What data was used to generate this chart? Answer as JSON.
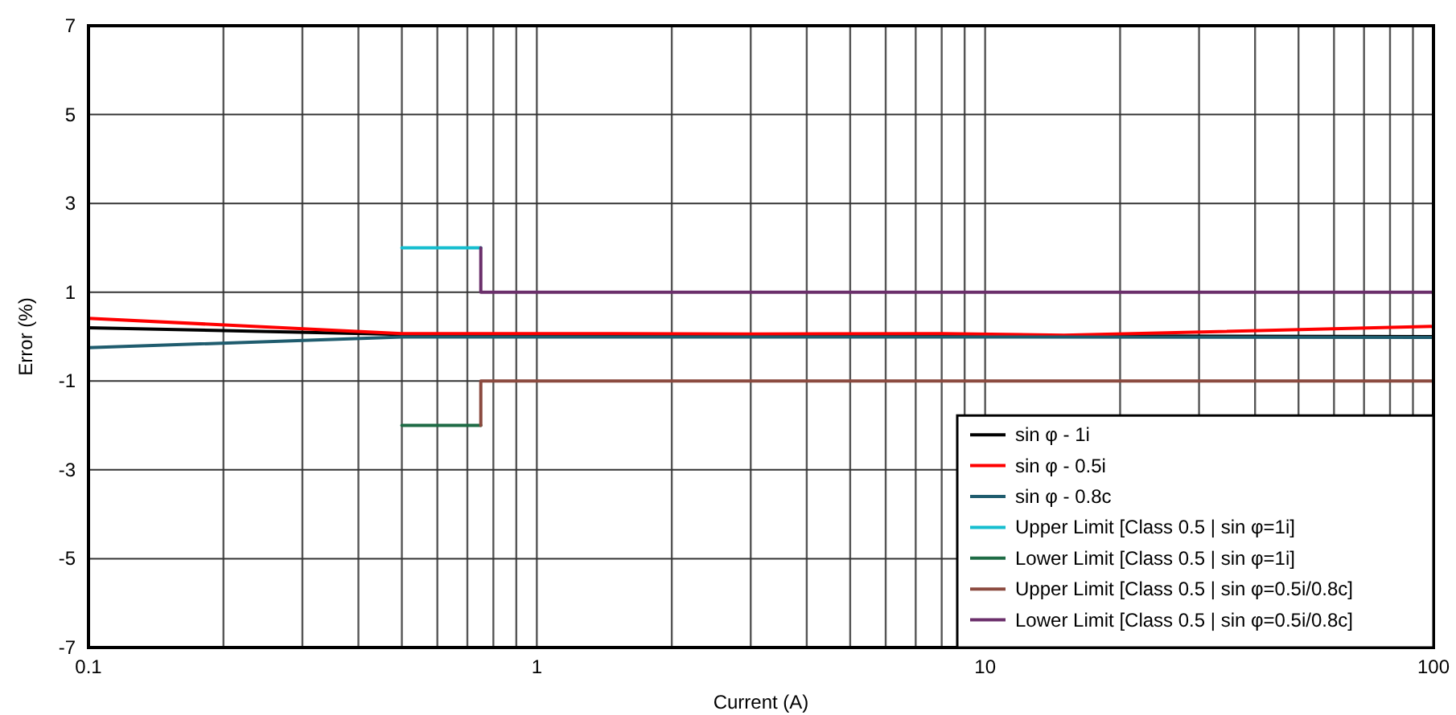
{
  "chart_data": {
    "type": "line",
    "xlabel": "Current (A)",
    "ylabel": "Error (%)",
    "log": "x",
    "xlim": [
      0.1,
      100
    ],
    "xticks": [
      0.1,
      1,
      10,
      100
    ],
    "ylim": [
      -7,
      7
    ],
    "yticks": [
      -7,
      -5,
      -3,
      -1,
      1,
      3,
      5,
      7
    ],
    "grid": true,
    "legend": "bottom right",
    "line_style": "solid",
    "marker": "none",
    "series": [
      {
        "name": "sin φ - 1i",
        "color": "#000000",
        "x": [
          0.1,
          0.5,
          1,
          10,
          100
        ],
        "values": [
          0.2,
          0.05,
          0.03,
          0.02,
          0
        ]
      },
      {
        "name": "sin φ - 0.5i",
        "color": "#ff0000",
        "x": [
          0.1,
          0.5,
          1,
          3,
          8,
          15,
          100
        ],
        "values": [
          0.41,
          0.07,
          0.07,
          0.06,
          0.07,
          0.03,
          0.23
        ]
      },
      {
        "name": "sin φ - 0.8c",
        "color": "#1f5c6e",
        "x": [
          0.1,
          0.5,
          1,
          10,
          100
        ],
        "values": [
          -0.25,
          -0.01,
          -0.01,
          -0.01,
          -0.02
        ]
      },
      {
        "name": "Upper Limit [Class 0.5 | sin φ=1i]",
        "color": "#17becf",
        "x": [
          0.5,
          0.75
        ],
        "values": [
          2,
          2
        ]
      },
      {
        "name": "Lower Limit [Class 0.5 | sin φ=1i]",
        "color": "#1e6b45",
        "x": [
          0.5,
          0.75
        ],
        "values": [
          -2,
          -2
        ]
      },
      {
        "name": "Upper Limit [Class 0.5 | sin φ=0.5i/0.8c]",
        "color": "#8b4a3f",
        "x": [
          0.75,
          0.75,
          100
        ],
        "values": [
          -2,
          -1,
          -1
        ]
      },
      {
        "name": "Lower Limit [Class 0.5 | sin φ=0.5i/0.8c]",
        "color": "#6b2f6b",
        "x": [
          0.75,
          0.75,
          100
        ],
        "values": [
          2,
          1,
          1
        ]
      }
    ]
  }
}
